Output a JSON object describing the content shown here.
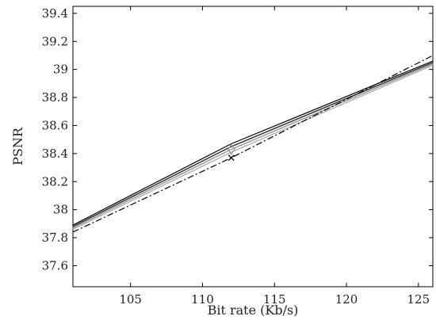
{
  "chart_data": {
    "type": "line",
    "title": "",
    "xlabel": "Bit rate (Kb/s)",
    "ylabel": "PSNR",
    "xlim": [
      101,
      126
    ],
    "ylim": [
      37.45,
      39.45
    ],
    "xticks": [
      105,
      110,
      115,
      120,
      125
    ],
    "yticks": [
      37.6,
      37.8,
      38.0,
      38.2,
      38.4,
      38.6,
      38.8,
      39.0,
      39.2,
      39.4
    ],
    "ytick_labels": [
      "37.6",
      "37.8",
      "38",
      "38.2",
      "38.4",
      "38.6",
      "38.8",
      "39",
      "39.2",
      "39.4"
    ],
    "grid": false,
    "series": [
      {
        "style": "solid",
        "color": "#000000",
        "marker": "none",
        "points": [
          [
            101,
            37.89
          ],
          [
            112,
            38.47
          ],
          [
            126,
            39.06
          ]
        ]
      },
      {
        "style": "solid",
        "color": "#333333",
        "marker": "none",
        "points": [
          [
            101,
            37.88
          ],
          [
            112,
            38.45
          ],
          [
            126,
            39.05
          ]
        ]
      },
      {
        "style": "solid",
        "color": "#9a9a9a",
        "marker": "diamond",
        "marker_at": [
          [
            112,
            38.43
          ]
        ],
        "points": [
          [
            101,
            37.87
          ],
          [
            112,
            38.43
          ],
          [
            126,
            39.04
          ]
        ]
      },
      {
        "style": "solid",
        "color": "#b5b5b5",
        "marker": "none",
        "points": [
          [
            101,
            37.86
          ],
          [
            112,
            38.41
          ],
          [
            126,
            39.03
          ]
        ]
      },
      {
        "style": "dashdot",
        "color": "#000000",
        "marker": "x",
        "marker_at": [
          [
            112,
            38.37
          ]
        ],
        "points": [
          [
            101,
            37.84
          ],
          [
            112,
            38.37
          ],
          [
            126,
            39.1
          ]
        ]
      }
    ]
  }
}
